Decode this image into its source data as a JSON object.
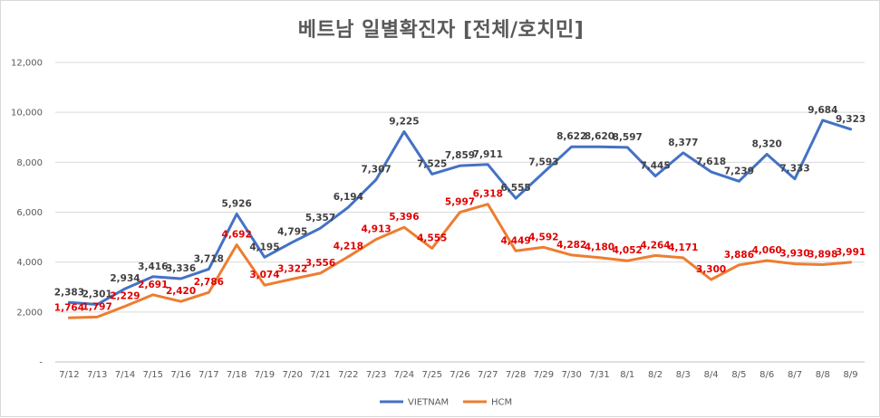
{
  "chart_data": {
    "type": "line",
    "title": "베트남  일별확진자 [전체/호치민]",
    "xlabel": "",
    "ylabel": "",
    "ylim": [
      0,
      12000
    ],
    "y_ticks": [
      "-",
      "2,000",
      "4,000",
      "6,000",
      "8,000",
      "10,000",
      "12,000"
    ],
    "grid": true,
    "legend_position": "bottom",
    "categories": [
      "7/12",
      "7/13",
      "7/14",
      "7/15",
      "7/16",
      "7/17",
      "7/18",
      "7/19",
      "7/20",
      "7/21",
      "7/22",
      "7/23",
      "7/24",
      "7/25",
      "7/26",
      "7/27",
      "7/28",
      "7/29",
      "7/30",
      "7/31",
      "8/1",
      "8/2",
      "8/3",
      "8/4",
      "8/5",
      "8/6",
      "8/7",
      "8/8",
      "8/9"
    ],
    "series": [
      {
        "name": "VIETNAM",
        "color": "#4472c4",
        "label_color": "#404040",
        "values": [
          2383,
          2301,
          2934,
          3416,
          3336,
          3718,
          5926,
          4195,
          4795,
          5357,
          6194,
          7307,
          9225,
          7525,
          7859,
          7911,
          6555,
          7593,
          8622,
          8620,
          8597,
          7445,
          8377,
          7618,
          7239,
          8320,
          7333,
          9684,
          9323
        ],
        "labels": [
          "2,383",
          "2,301",
          "2,934",
          "3,416",
          "3,336",
          "3,718",
          "5,926",
          "4,195",
          "4,795",
          "5,357",
          "6,194",
          "7,307",
          "9,225",
          "7,525",
          "7,859",
          "7,911",
          "6,555",
          "7,593",
          "8,622",
          "8,620",
          "8,597",
          "7,445",
          "8,377",
          "7,618",
          "7,239",
          "8,320",
          "7,333",
          "9,684",
          "9,323"
        ]
      },
      {
        "name": "HCM",
        "color": "#ed7d31",
        "label_color": "#e00000",
        "values": [
          1764,
          1797,
          2229,
          2691,
          2420,
          2786,
          4692,
          3074,
          3322,
          3556,
          4218,
          4913,
          5396,
          4555,
          5997,
          6318,
          4449,
          4592,
          4282,
          4180,
          4052,
          4264,
          4171,
          3300,
          3886,
          4060,
          3930,
          3898,
          3991
        ],
        "labels": [
          "1,764",
          "1,797",
          "2,229",
          "2,691",
          "2,420",
          "2,786",
          "4,692",
          "3,074",
          "3,322",
          "3,556",
          "4,218",
          "4,913",
          "5,396",
          "4,555",
          "5,997",
          "6,318",
          "4,449",
          "4,592",
          "4,282",
          "4,180",
          "4,052",
          "4,264",
          "4,171",
          "3,300",
          "3,886",
          "4,060",
          "3,930",
          "3,898",
          "3,991"
        ]
      }
    ]
  }
}
